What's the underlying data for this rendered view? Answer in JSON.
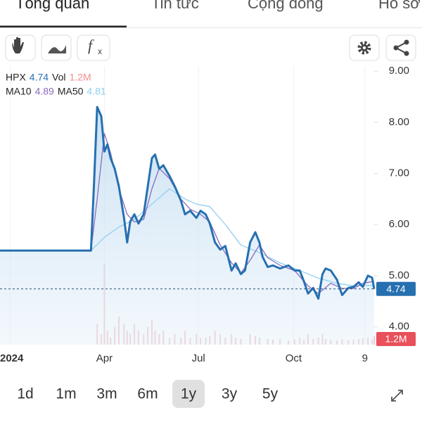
{
  "tabs": [
    "Tổng quan",
    "Tin tức",
    "Cộng đồng",
    "Hồ sơ"
  ],
  "toolbar": {
    "formula": "f",
    "formula_sub": "x"
  },
  "chart_data": {
    "type": "line",
    "series": [
      {
        "name": "HPX",
        "color": "#2670b0",
        "x": [
          -10,
          78,
          81,
          84,
          88,
          91,
          94,
          97,
          101,
          105,
          110,
          113,
          116,
          120,
          124,
          129,
          133,
          137,
          140,
          144,
          148,
          154,
          159,
          165,
          169,
          174,
          180,
          184,
          189,
          193,
          198,
          203,
          208,
          214,
          218,
          223,
          227,
          232,
          237,
          241,
          244,
          249,
          254,
          261,
          269,
          275,
          280,
          284,
          288,
          293,
          298,
          302,
          305,
          310,
          316,
          321,
          327,
          332,
          337,
          341,
          346,
          350,
          352
        ],
        "values": [
          5.49,
          5.49,
          6.82,
          8.3,
          8.12,
          7.43,
          7.57,
          7.3,
          7.09,
          6.75,
          6.13,
          5.65,
          6.06,
          6.2,
          6.02,
          6.2,
          6.75,
          7.3,
          7.37,
          7.09,
          7.16,
          6.95,
          6.75,
          6.47,
          6.2,
          6.27,
          6.13,
          6.27,
          6.2,
          6.02,
          5.65,
          5.51,
          5.58,
          5.1,
          5.24,
          5.03,
          5.1,
          5.65,
          5.85,
          5.65,
          5.37,
          5.17,
          5.2,
          5.14,
          5.2,
          5.1,
          5.1,
          4.89,
          4.65,
          4.76,
          4.55,
          5.03,
          5.14,
          5.1,
          4.92,
          4.62,
          4.76,
          4.78,
          4.87,
          4.78,
          5.0,
          4.96,
          4.74
        ]
      },
      {
        "name": "MA10",
        "color": "#8a6bbf",
        "x": [
          -10,
          78,
          84,
          91,
          97,
          105,
          113,
          120,
          129,
          137,
          144,
          154,
          165,
          174,
          184,
          193,
          203,
          214,
          223,
          232,
          241,
          249,
          261,
          275,
          288,
          298,
          310,
          321,
          332,
          341,
          352
        ],
        "values": [
          5.49,
          5.49,
          6.5,
          7.78,
          7.4,
          6.7,
          6.2,
          6.05,
          6.1,
          6.7,
          7.1,
          6.9,
          6.5,
          6.3,
          6.2,
          6.05,
          5.6,
          5.25,
          5.05,
          5.3,
          5.6,
          5.35,
          5.2,
          5.1,
          4.8,
          4.65,
          4.85,
          4.75,
          4.75,
          4.85,
          4.89
        ]
      },
      {
        "name": "MA50",
        "color": "#8fd0f0",
        "x": [
          -10,
          78,
          91,
          105,
          120,
          137,
          154,
          169,
          180,
          193,
          208,
          223,
          241,
          261,
          280,
          298,
          316,
          332,
          352
        ],
        "values": [
          5.49,
          5.49,
          5.75,
          5.95,
          6.1,
          6.4,
          6.7,
          6.5,
          6.4,
          6.35,
          6.0,
          5.6,
          5.45,
          5.25,
          5.1,
          4.95,
          4.85,
          4.8,
          4.81
        ]
      }
    ],
    "volume": {
      "name": "Vol",
      "color": "#e9a5a5",
      "last_label": "1.2M",
      "ylim": [
        0,
        12
      ],
      "x": [
        84,
        88,
        91,
        94,
        97,
        101,
        105,
        110,
        113,
        116,
        120,
        124,
        129,
        133,
        137,
        140,
        144,
        148,
        154,
        159,
        165,
        169,
        174,
        180,
        184,
        189,
        193,
        198,
        203,
        208,
        214,
        218,
        223,
        232,
        237,
        241,
        249,
        254,
        261,
        269,
        275,
        280,
        284,
        288,
        293,
        298,
        302,
        305,
        310,
        316,
        321,
        327,
        332,
        337,
        341,
        346,
        350,
        352
      ],
      "values": [
        3,
        1.5,
        11.5,
        2,
        1,
        2.5,
        4,
        3,
        2,
        1.5,
        3,
        2,
        1.5,
        2.5,
        3.5,
        2,
        1.5,
        2,
        1,
        1.5,
        1,
        2,
        1,
        1.5,
        1,
        1,
        1.2,
        2,
        1.5,
        1,
        1.5,
        1,
        0.8,
        1.5,
        1.2,
        1,
        0.8,
        0.7,
        0.8,
        0.6,
        0.8,
        1,
        0.7,
        1.5,
        0.8,
        1,
        1.5,
        0.8,
        0.7,
        0.6,
        0.8,
        0.6,
        0.7,
        0.8,
        0.9,
        1,
        0.8,
        1.2
      ]
    },
    "xlim": [
      -10,
      352
    ],
    "xticks": [
      {
        "value": 0,
        "label": "2024"
      },
      {
        "value": 91,
        "label": "Apr"
      },
      {
        "value": 182,
        "label": "Jul"
      },
      {
        "value": 274,
        "label": "Oct"
      },
      {
        "value": 343,
        "label": "9"
      }
    ],
    "ylim": [
      3.65,
      9.1
    ],
    "yticks": [
      {
        "value": 9,
        "label": "9.00"
      },
      {
        "value": 8,
        "label": "8.00"
      },
      {
        "value": 7,
        "label": "7.00"
      },
      {
        "value": 6,
        "label": "6.00"
      },
      {
        "value": 5,
        "label": "5.00"
      },
      {
        "value": 4,
        "label": "4.00"
      }
    ],
    "grid": true
  },
  "ranges": [
    "1d",
    "1m",
    "3m",
    "6m",
    "1y",
    "3y",
    "5y"
  ],
  "selected_index": 4
}
